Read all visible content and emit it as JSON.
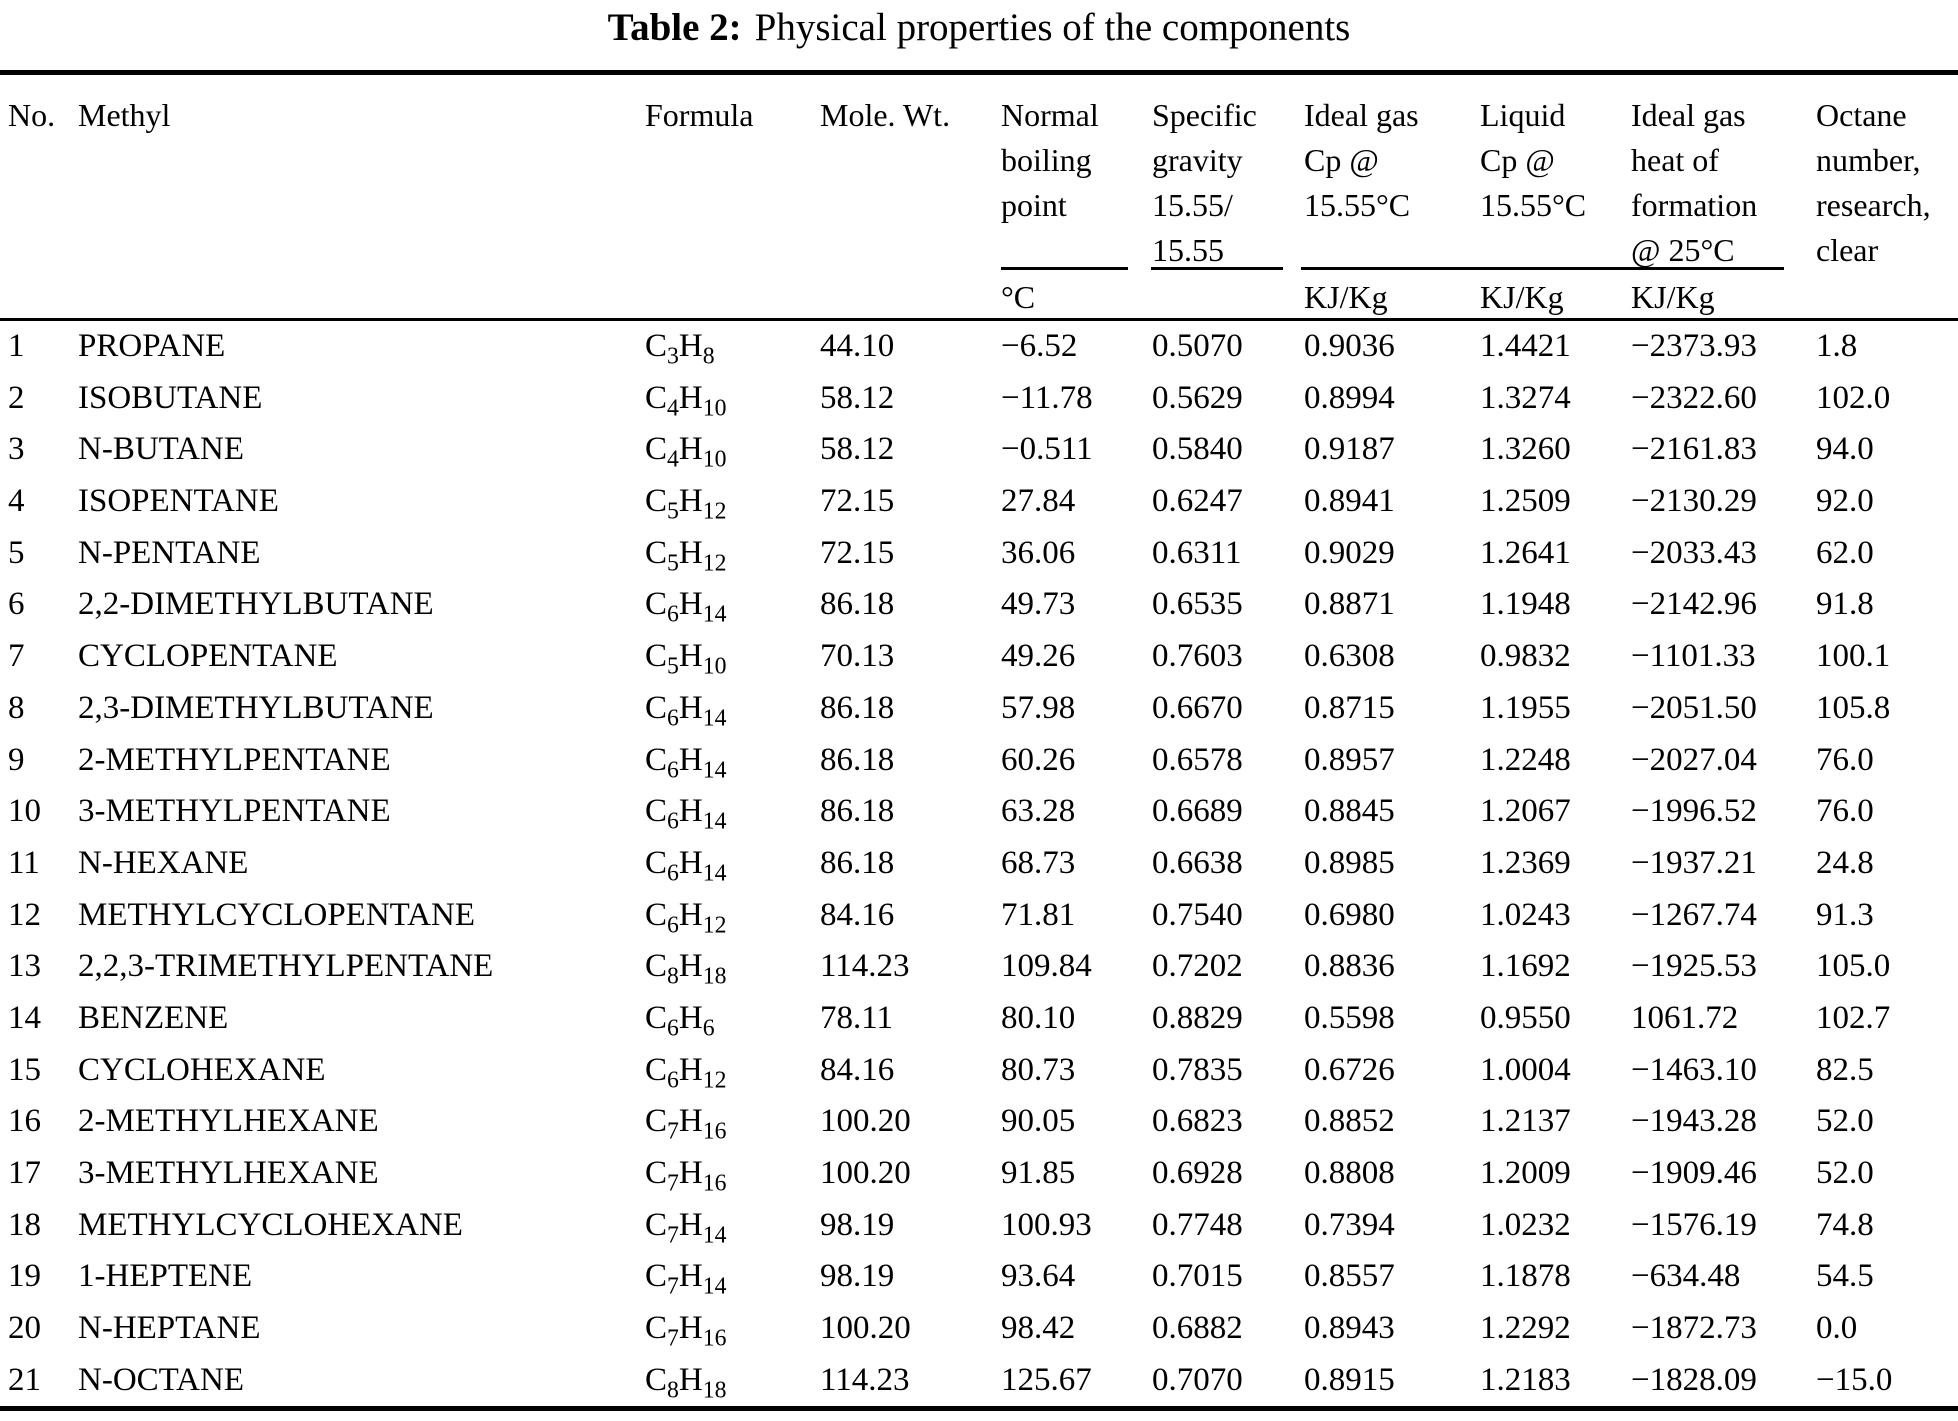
{
  "title": {
    "label": "Table 2:",
    "text": "Physical properties of the components"
  },
  "table": {
    "columns": [
      {
        "id": "no",
        "lines": [
          "No."
        ]
      },
      {
        "id": "name",
        "lines": [
          "Methyl"
        ]
      },
      {
        "id": "formula",
        "lines": [
          "Formula"
        ]
      },
      {
        "id": "molewt",
        "lines": [
          "Mole. Wt."
        ]
      },
      {
        "id": "bp",
        "lines": [
          "Normal",
          "boiling",
          "point"
        ],
        "unit": "°C"
      },
      {
        "id": "sg",
        "lines": [
          "Specific",
          "gravity",
          "15.55/",
          "15.55"
        ]
      },
      {
        "id": "cp_gas",
        "lines": [
          "Ideal gas",
          "Cp @",
          "15.55°C"
        ],
        "unit": "KJ/Kg"
      },
      {
        "id": "cp_liq",
        "lines": [
          "Liquid",
          "Cp @",
          "15.55°C"
        ],
        "unit": "KJ/Kg"
      },
      {
        "id": "hof",
        "lines": [
          "Ideal gas",
          "heat of",
          "formation",
          "@ 25°C"
        ],
        "unit": "KJ/Kg"
      },
      {
        "id": "octane",
        "lines": [
          "Octane",
          "number,",
          "research,",
          "clear"
        ]
      }
    ],
    "rows": [
      {
        "no": "1",
        "name": "PROPANE",
        "formula": "C3H8",
        "molewt": "44.10",
        "bp": "−6.52",
        "sg": "0.5070",
        "cp_gas": "0.9036",
        "cp_liq": "1.4421",
        "hof": "−2373.93",
        "octane": "1.8"
      },
      {
        "no": "2",
        "name": "ISOBUTANE",
        "formula": "C4H10",
        "molewt": "58.12",
        "bp": "−11.78",
        "sg": "0.5629",
        "cp_gas": "0.8994",
        "cp_liq": "1.3274",
        "hof": "−2322.60",
        "octane": "102.0"
      },
      {
        "no": "3",
        "name": "N-BUTANE",
        "formula": "C4H10",
        "molewt": "58.12",
        "bp": "−0.511",
        "sg": "0.5840",
        "cp_gas": "0.9187",
        "cp_liq": "1.3260",
        "hof": "−2161.83",
        "octane": "94.0"
      },
      {
        "no": "4",
        "name": "ISOPENTANE",
        "formula": "C5H12",
        "molewt": "72.15",
        "bp": "27.84",
        "sg": "0.6247",
        "cp_gas": "0.8941",
        "cp_liq": "1.2509",
        "hof": "−2130.29",
        "octane": "92.0"
      },
      {
        "no": "5",
        "name": "N-PENTANE",
        "formula": "C5H12",
        "molewt": "72.15",
        "bp": "36.06",
        "sg": "0.6311",
        "cp_gas": "0.9029",
        "cp_liq": "1.2641",
        "hof": "−2033.43",
        "octane": "62.0"
      },
      {
        "no": "6",
        "name": "2,2-DIMETHYLBUTANE",
        "formula": "C6H14",
        "molewt": "86.18",
        "bp": "49.73",
        "sg": "0.6535",
        "cp_gas": "0.8871",
        "cp_liq": "1.1948",
        "hof": "−2142.96",
        "octane": "91.8"
      },
      {
        "no": "7",
        "name": "CYCLOPENTANE",
        "formula": "C5H10",
        "molewt": "70.13",
        "bp": "49.26",
        "sg": "0.7603",
        "cp_gas": "0.6308",
        "cp_liq": "0.9832",
        "hof": "−1101.33",
        "octane": "100.1"
      },
      {
        "no": "8",
        "name": "2,3-DIMETHYLBUTANE",
        "formula": "C6H14",
        "molewt": "86.18",
        "bp": "57.98",
        "sg": "0.6670",
        "cp_gas": "0.8715",
        "cp_liq": "1.1955",
        "hof": "−2051.50",
        "octane": "105.8"
      },
      {
        "no": "9",
        "name": "2-METHYLPENTANE",
        "formula": "C6H14",
        "molewt": "86.18",
        "bp": "60.26",
        "sg": "0.6578",
        "cp_gas": "0.8957",
        "cp_liq": "1.2248",
        "hof": "−2027.04",
        "octane": "76.0"
      },
      {
        "no": "10",
        "name": "3-METHYLPENTANE",
        "formula": "C6H14",
        "molewt": "86.18",
        "bp": "63.28",
        "sg": "0.6689",
        "cp_gas": "0.8845",
        "cp_liq": "1.2067",
        "hof": "−1996.52",
        "octane": "76.0"
      },
      {
        "no": "11",
        "name": "N-HEXANE",
        "formula": "C6H14",
        "molewt": "86.18",
        "bp": "68.73",
        "sg": "0.6638",
        "cp_gas": "0.8985",
        "cp_liq": "1.2369",
        "hof": "−1937.21",
        "octane": "24.8"
      },
      {
        "no": "12",
        "name": "METHYLCYCLOPENTANE",
        "formula": "C6H12",
        "molewt": "84.16",
        "bp": "71.81",
        "sg": "0.7540",
        "cp_gas": "0.6980",
        "cp_liq": "1.0243",
        "hof": "−1267.74",
        "octane": "91.3"
      },
      {
        "no": "13",
        "name": "2,2,3-TRIMETHYLPENTANE",
        "formula": "C8H18",
        "molewt": "114.23",
        "bp": "109.84",
        "sg": "0.7202",
        "cp_gas": "0.8836",
        "cp_liq": "1.1692",
        "hof": "−1925.53",
        "octane": "105.0"
      },
      {
        "no": "14",
        "name": "BENZENE",
        "formula": "C6H6",
        "molewt": "78.11",
        "bp": "80.10",
        "sg": "0.8829",
        "cp_gas": "0.5598",
        "cp_liq": "0.9550",
        "hof": "1061.72",
        "octane": "102.7"
      },
      {
        "no": "15",
        "name": "CYCLOHEXANE",
        "formula": "C6H12",
        "molewt": "84.16",
        "bp": "80.73",
        "sg": "0.7835",
        "cp_gas": "0.6726",
        "cp_liq": "1.0004",
        "hof": "−1463.10",
        "octane": "82.5"
      },
      {
        "no": "16",
        "name": "2-METHYLHEXANE",
        "formula": "C7H16",
        "molewt": "100.20",
        "bp": "90.05",
        "sg": "0.6823",
        "cp_gas": "0.8852",
        "cp_liq": "1.2137",
        "hof": "−1943.28",
        "octane": "52.0"
      },
      {
        "no": "17",
        "name": "3-METHYLHEXANE",
        "formula": "C7H16",
        "molewt": "100.20",
        "bp": "91.85",
        "sg": "0.6928",
        "cp_gas": "0.8808",
        "cp_liq": "1.2009",
        "hof": "−1909.46",
        "octane": "52.0"
      },
      {
        "no": "18",
        "name": "METHYLCYCLOHEXANE",
        "formula": "C7H14",
        "molewt": "98.19",
        "bp": "100.93",
        "sg": "0.7748",
        "cp_gas": "0.7394",
        "cp_liq": "1.0232",
        "hof": "−1576.19",
        "octane": "74.8"
      },
      {
        "no": "19",
        "name": "1-HEPTENE",
        "formula": "C7H14",
        "molewt": "98.19",
        "bp": "93.64",
        "sg": "0.7015",
        "cp_gas": "0.8557",
        "cp_liq": "1.1878",
        "hof": "−634.48",
        "octane": "54.5"
      },
      {
        "no": "20",
        "name": "N-HEPTANE",
        "formula": "C7H16",
        "molewt": "100.20",
        "bp": "98.42",
        "sg": "0.6882",
        "cp_gas": "0.8943",
        "cp_liq": "1.2292",
        "hof": "−1872.73",
        "octane": "0.0"
      },
      {
        "no": "21",
        "name": "N-OCTANE",
        "formula": "C8H18",
        "molewt": "114.23",
        "bp": "125.67",
        "sg": "0.7070",
        "cp_gas": "0.8915",
        "cp_liq": "1.2183",
        "hof": "−1828.09",
        "octane": "−15.0"
      }
    ]
  }
}
